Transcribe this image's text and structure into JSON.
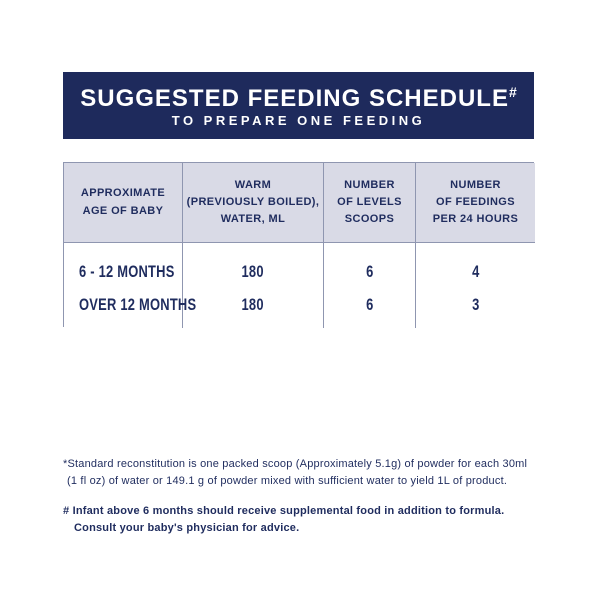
{
  "banner": {
    "title": "SUGGESTED FEEDING SCHEDULE",
    "title_superscript": "#",
    "subtitle": "TO PREPARE ONE FEEDING",
    "bg_color": "#1e2a5c",
    "text_color": "#ffffff"
  },
  "table": {
    "headers": [
      "APPROXIMATE\nAGE OF BABY",
      "WARM\n(PREVIOUSLY BOILED),\nWATER, ML",
      "NUMBER\nOF LEVELS\nSCOOPS",
      "NUMBER\nOF FEEDINGS\nPER 24 HOURS"
    ],
    "rows": [
      {
        "age": "6 - 12 MONTHS",
        "water_ml": "180",
        "scoops": "6",
        "feedings": "4"
      },
      {
        "age": "OVER 12 MONTHS",
        "water_ml": "180",
        "scoops": "6",
        "feedings": "3"
      }
    ],
    "header_bg_color": "#d9dae6",
    "border_color": "#8f96b0",
    "text_color": "#1f2c5e"
  },
  "footnotes": {
    "standard": {
      "lines": [
        "*Standard reconstitution is one packed scoop (Approximately 5.1g) of powder for each 30ml",
        "(1 fl oz) of water or 149.1 g of powder mixed with sufficient water to yield 1L of product."
      ]
    },
    "infant": {
      "lines": [
        "# Infant above 6 months should receive supplemental food in addition to formula.",
        "Consult your baby's physician for advice."
      ]
    }
  }
}
